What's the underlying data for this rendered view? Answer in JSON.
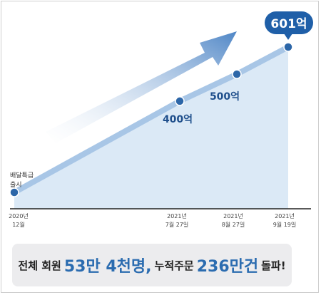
{
  "colors": {
    "line": "#a8c6e6",
    "area": "#dbe9f6",
    "point": "#2c66a8",
    "label": "#1f4f8c",
    "badge": "#1f5fa8",
    "axis": "#222222",
    "highlight": "#2b6cb0"
  },
  "chart_data": {
    "type": "area",
    "x": [
      "2020년 12월",
      "2021년 7월 27일",
      "2021년 8월 27일",
      "2021년 9월 19일"
    ],
    "values": [
      0,
      400,
      500,
      601
    ],
    "unit": "억",
    "tick_labels": [
      [
        "2020년",
        "12월"
      ],
      [
        "2021년",
        "7월 27일"
      ],
      [
        "2021년",
        "8월 27일"
      ],
      [
        "2021년",
        "9월 19일"
      ]
    ],
    "point_labels": [
      "",
      "400억",
      "500억",
      "601억"
    ],
    "start_annotation": [
      "배달특급",
      "출시"
    ],
    "decorations": [
      "trend-arrow"
    ]
  },
  "summary": {
    "prefix": "전체 회원",
    "members": "53만 4천명,",
    "middle": "누적주문",
    "orders": "236만건",
    "suffix": "돌파!"
  }
}
